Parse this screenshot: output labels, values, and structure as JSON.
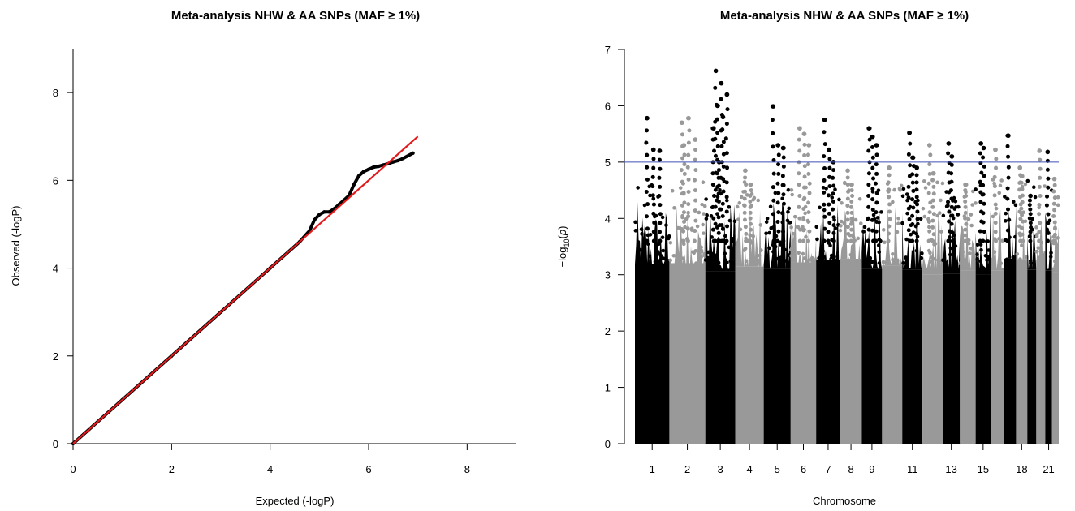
{
  "chart_data": [
    {
      "type": "scatter",
      "title": "Meta-analysis NHW & AA SNPs (MAF ≥ 1%)",
      "xlabel": "Expected (-logP)",
      "ylabel": "Observed (-logP)",
      "xlim": [
        0,
        9
      ],
      "ylim": [
        0,
        9
      ],
      "xticks": [
        "0",
        "2",
        "4",
        "6",
        "8"
      ],
      "yticks": [
        "0",
        "2",
        "4",
        "6",
        "8"
      ],
      "reference_line": {
        "from": [
          0,
          0
        ],
        "to": [
          7,
          7
        ],
        "color": "#e31a1c"
      },
      "series": [
        {
          "values_x": [
            0,
            1,
            2,
            3,
            4,
            4.6,
            4.8,
            4.9,
            5.0,
            5.1,
            5.2,
            5.3,
            5.4,
            5.5,
            5.6,
            5.7,
            5.8,
            5.9,
            6.0,
            6.1,
            6.2,
            6.3,
            6.4,
            6.5,
            6.6,
            6.7,
            6.9
          ],
          "values_y": [
            0,
            1,
            2,
            3,
            4,
            4.6,
            4.85,
            5.1,
            5.22,
            5.28,
            5.28,
            5.35,
            5.45,
            5.55,
            5.65,
            5.9,
            6.1,
            6.2,
            6.25,
            6.3,
            6.32,
            6.35,
            6.38,
            6.42,
            6.45,
            6.5,
            6.62
          ],
          "color": "#000000"
        }
      ]
    },
    {
      "type": "scatter",
      "subtype": "manhattan",
      "title": "Meta-analysis NHW & AA SNPs (MAF ≥ 1%)",
      "xlabel": "Chromosome",
      "ylabel_parts": [
        "−log",
        "10",
        "(",
        "p",
        ")"
      ],
      "ylim": [
        0,
        7
      ],
      "yticks": [
        "0",
        "1",
        "2",
        "3",
        "4",
        "5",
        "6",
        "7"
      ],
      "threshold": {
        "y": 5,
        "color": "#3f51b5"
      },
      "xtick_labels": [
        "1",
        "2",
        "3",
        "4",
        "5",
        "6",
        "7",
        "8",
        "9",
        "11",
        "13",
        "15",
        "18",
        "21"
      ],
      "colors": [
        "#000000",
        "#999999"
      ],
      "chromosomes": [
        {
          "chr": "1",
          "max": 5.78,
          "top": [
            5.78,
            5.22,
            5.2
          ]
        },
        {
          "chr": "2",
          "max": 5.78,
          "top": [
            5.7,
            5.78,
            5.4,
            5.3
          ]
        },
        {
          "chr": "3",
          "max": 6.62,
          "top": [
            6.62,
            6.4,
            6.2,
            6.0,
            5.8,
            5.6,
            5.0
          ]
        },
        {
          "chr": "4",
          "max": 4.85,
          "top": [
            4.85,
            4.6
          ]
        },
        {
          "chr": "5",
          "max": 5.99,
          "top": [
            5.99,
            5.3,
            5.25
          ]
        },
        {
          "chr": "6",
          "max": 5.6,
          "top": [
            5.6,
            5.5,
            5.3
          ]
        },
        {
          "chr": "7",
          "max": 5.75,
          "top": [
            5.75,
            5.22,
            5.0
          ]
        },
        {
          "chr": "8",
          "max": 4.85,
          "top": [
            4.85,
            4.6
          ]
        },
        {
          "chr": "9",
          "max": 5.6,
          "top": [
            5.6,
            5.45,
            5.3
          ]
        },
        {
          "chr": "10",
          "max": 4.9,
          "top": [
            4.9
          ]
        },
        {
          "chr": "11",
          "max": 5.52,
          "top": [
            5.52,
            5.08,
            4.9
          ]
        },
        {
          "chr": "12",
          "max": 5.3,
          "top": [
            5.3,
            4.8
          ]
        },
        {
          "chr": "13",
          "max": 5.33,
          "top": [
            5.33,
            5.1
          ]
        },
        {
          "chr": "14",
          "max": 4.6,
          "top": [
            4.6
          ]
        },
        {
          "chr": "15",
          "max": 5.33,
          "top": [
            5.33,
            5.25
          ]
        },
        {
          "chr": "16",
          "max": 5.22,
          "top": [
            5.22
          ]
        },
        {
          "chr": "17",
          "max": 5.47,
          "top": [
            5.47
          ]
        },
        {
          "chr": "18",
          "max": 4.9,
          "top": [
            4.9,
            4.75
          ]
        },
        {
          "chr": "19",
          "max": 4.4,
          "top": [
            4.4
          ]
        },
        {
          "chr": "20",
          "max": 5.2,
          "top": [
            5.2
          ]
        },
        {
          "chr": "21",
          "max": 5.18,
          "top": [
            5.18
          ]
        },
        {
          "chr": "22",
          "max": 4.7,
          "top": [
            4.7
          ]
        }
      ]
    }
  ]
}
